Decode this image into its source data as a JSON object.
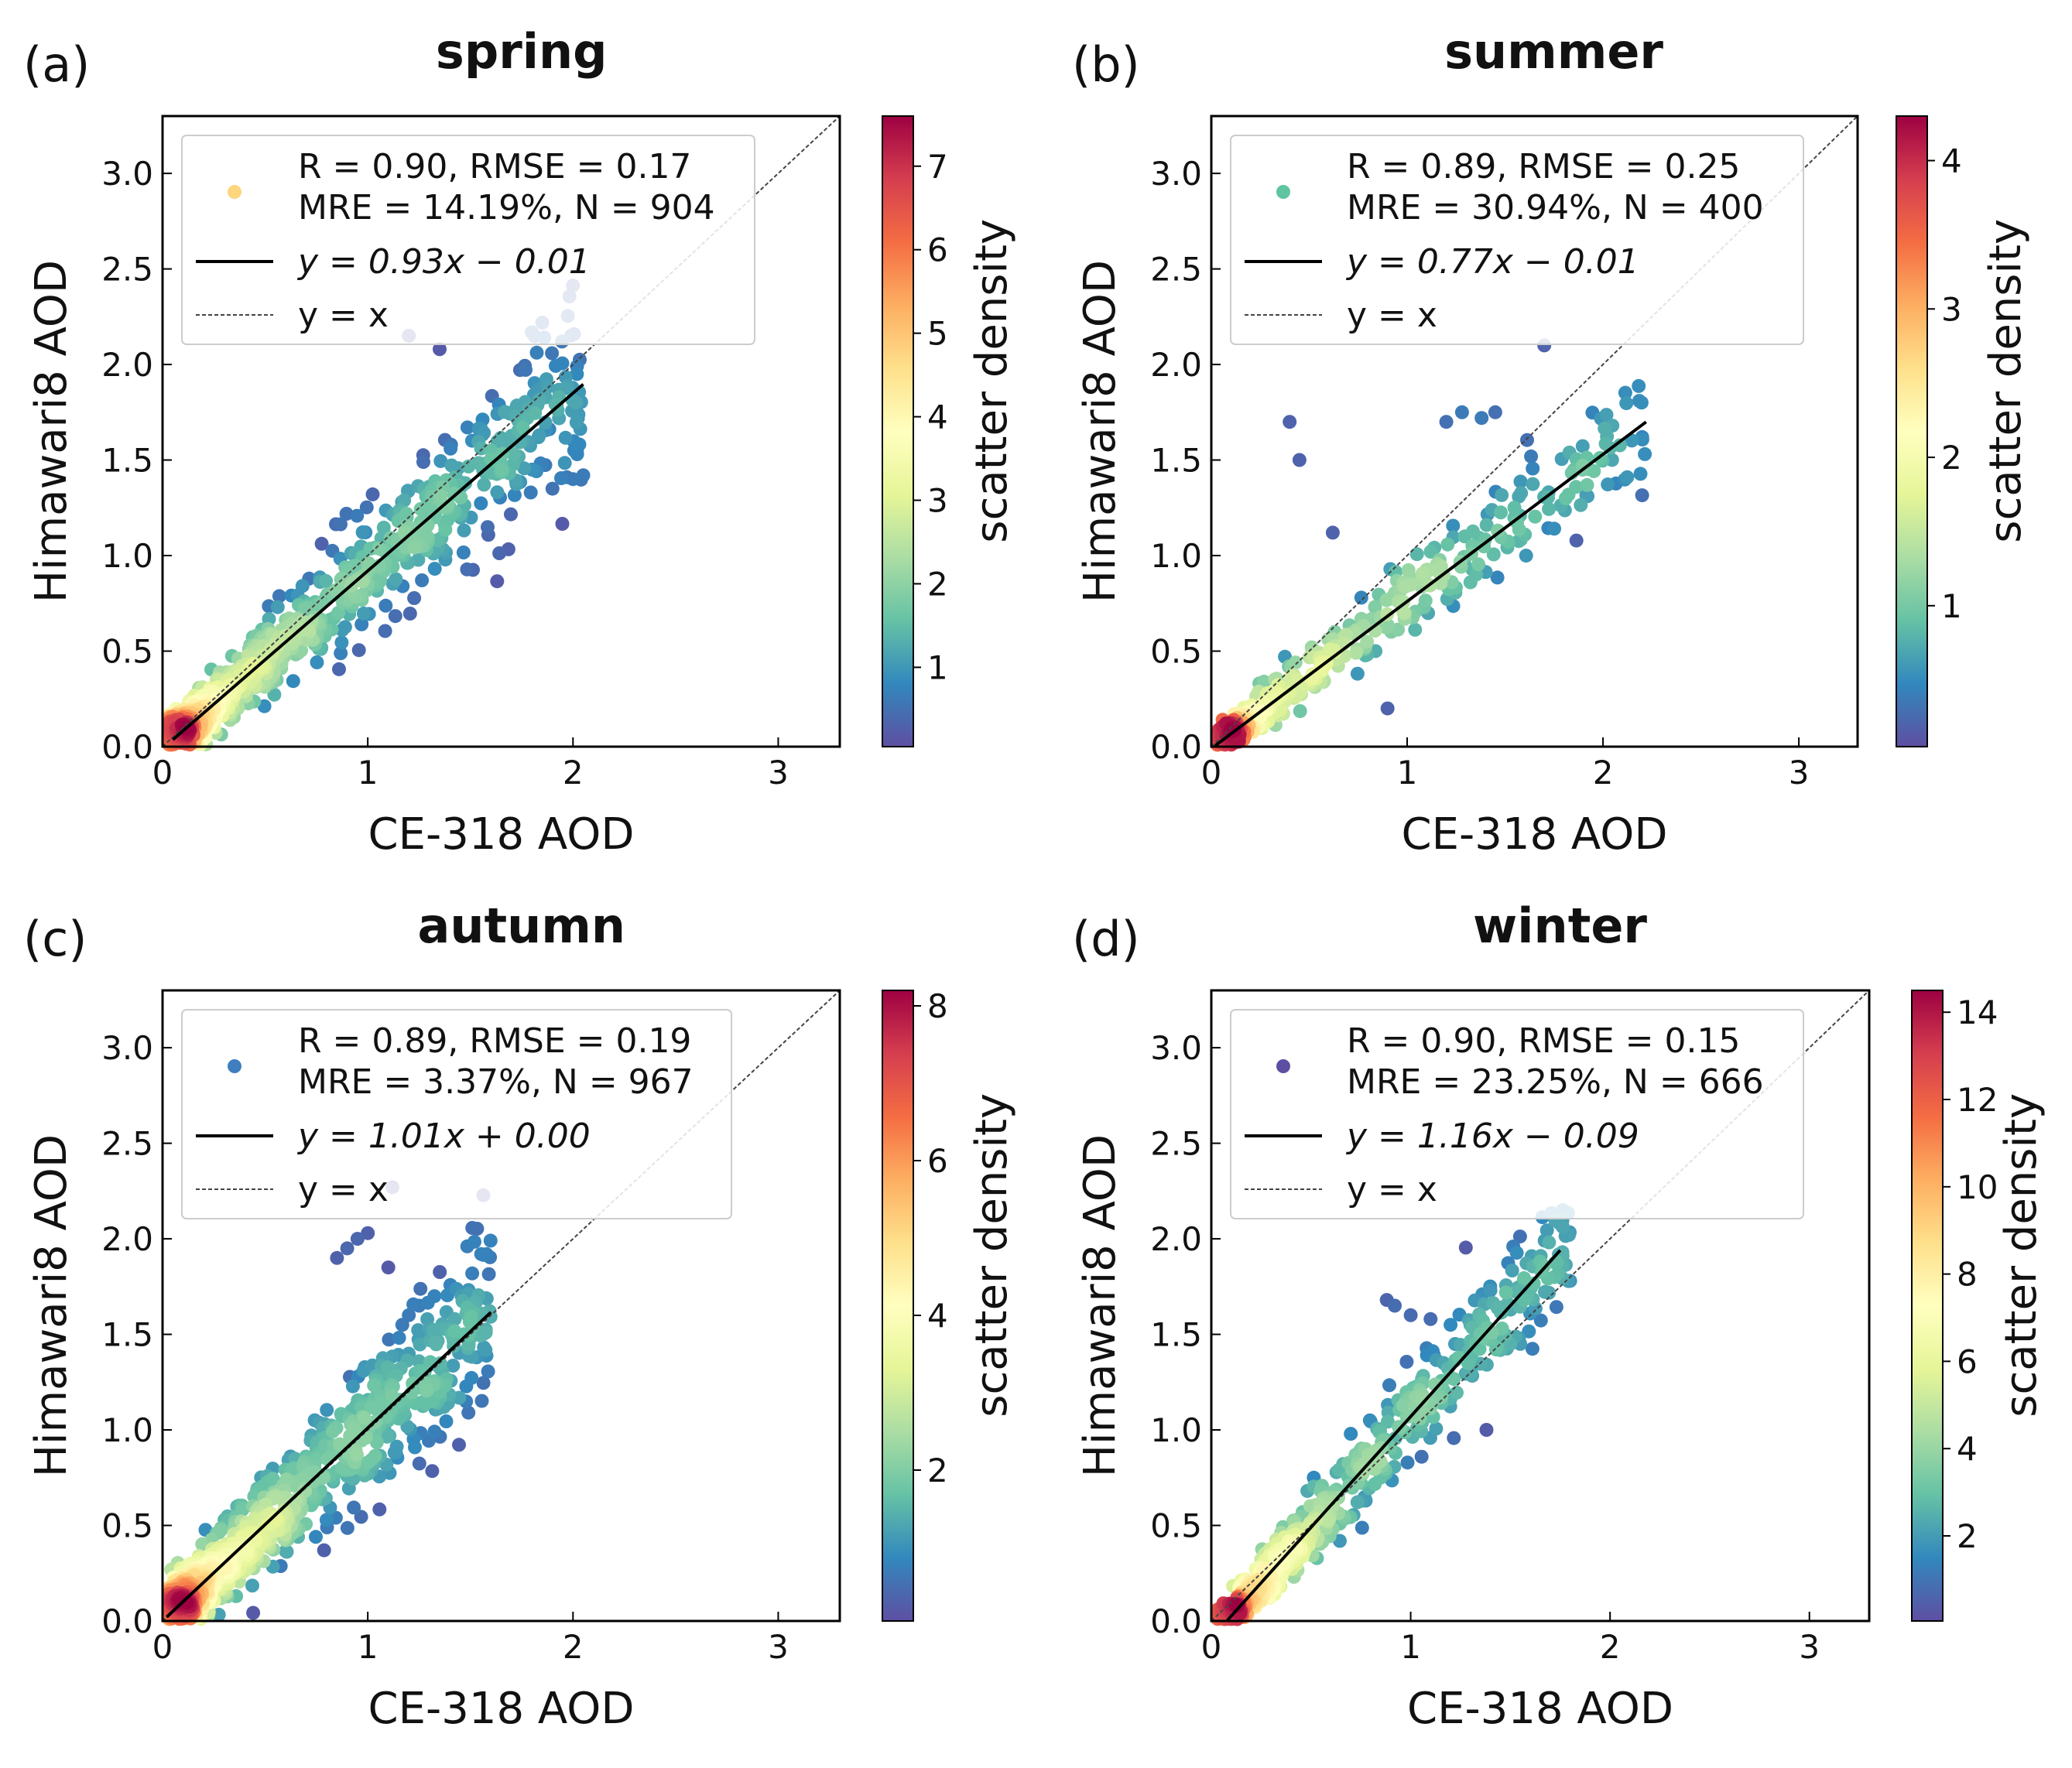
{
  "figure": {
    "panel_titles": [
      "spring",
      "summer",
      "autumn",
      "winter"
    ],
    "panel_labels": [
      "(a)",
      "(b)",
      "(c)",
      "(d)"
    ]
  },
  "chart_data": [
    {
      "type": "scatter",
      "title": "spring",
      "label": "(a)",
      "xlabel": "CE-318 AOD",
      "ylabel": "Himawari8 AOD",
      "xlim": [
        0,
        3.3
      ],
      "ylim": [
        0,
        3.3
      ],
      "xticks": [
        "0",
        "1",
        "2",
        "3"
      ],
      "yticks": [
        "0.0",
        "0.5",
        "1.0",
        "1.5",
        "2.0",
        "2.5",
        "3.0"
      ],
      "stats_line1": "R = 0.90, RMSE = 0.17",
      "stats_line2": "MRE = 14.19%, N = 904",
      "fit_label": "y = 0.93x − 0.01",
      "ref_label": "y = x",
      "fit": {
        "slope": 0.93,
        "intercept": -0.01,
        "x_range": [
          0.05,
          2.05
        ]
      },
      "legend_marker_color": "#fdd57f",
      "colorbar": {
        "label": "scatter density",
        "min": 0.05,
        "max": 7.6,
        "ticks": [
          "1",
          "2",
          "3",
          "4",
          "5",
          "6",
          "7"
        ],
        "tick_values": [
          1,
          2,
          3,
          4,
          5,
          6,
          7
        ]
      },
      "n": 904,
      "spread": 0.16,
      "x_max": 2.05,
      "outliers": [
        [
          1.2,
          2.15
        ],
        [
          1.35,
          2.08
        ],
        [
          1.9,
          1.35
        ],
        [
          2.0,
          1.4
        ],
        [
          2.05,
          1.42
        ],
        [
          1.8,
          1.45
        ],
        [
          2.02,
          1.53
        ],
        [
          1.6,
          1.55
        ]
      ]
    },
    {
      "type": "scatter",
      "title": "summer",
      "label": "(b)",
      "xlabel": "CE-318 AOD",
      "ylabel": "Himawari8 AOD",
      "xlim": [
        0,
        3.3
      ],
      "ylim": [
        0,
        3.3
      ],
      "xticks": [
        "0",
        "1",
        "2",
        "3"
      ],
      "yticks": [
        "0.0",
        "0.5",
        "1.0",
        "1.5",
        "2.0",
        "2.5",
        "3.0"
      ],
      "stats_line1": "R = 0.89, RMSE = 0.25",
      "stats_line2": "MRE = 30.94%, N = 400",
      "fit_label": "y = 0.77x − 0.01",
      "ref_label": "y = x",
      "fit": {
        "slope": 0.77,
        "intercept": -0.01,
        "x_range": [
          0.02,
          2.22
        ]
      },
      "legend_marker_color": "#5fc4a0",
      "colorbar": {
        "label": "scatter density",
        "min": 0.05,
        "max": 4.3,
        "ticks": [
          "1",
          "2",
          "3",
          "4"
        ],
        "tick_values": [
          1,
          2,
          3,
          4
        ]
      },
      "n": 400,
      "spread": 0.12,
      "x_max": 2.22,
      "outliers": [
        [
          0.4,
          1.7
        ],
        [
          0.45,
          1.5
        ],
        [
          1.2,
          1.7
        ],
        [
          1.28,
          1.75
        ],
        [
          1.38,
          1.72
        ],
        [
          1.45,
          1.75
        ],
        [
          1.7,
          2.1
        ],
        [
          0.62,
          1.12
        ],
        [
          0.9,
          0.2
        ],
        [
          2.2,
          1.62
        ]
      ]
    },
    {
      "type": "scatter",
      "title": "autumn",
      "label": "(c)",
      "xlabel": "CE-318 AOD",
      "ylabel": "Himawari8 AOD",
      "xlim": [
        0,
        3.3
      ],
      "ylim": [
        0,
        3.3
      ],
      "xticks": [
        "0",
        "1",
        "2",
        "3"
      ],
      "yticks": [
        "0.0",
        "0.5",
        "1.0",
        "1.5",
        "2.0",
        "2.5",
        "3.0"
      ],
      "stats_line1": "R = 0.89, RMSE = 0.19",
      "stats_line2": "MRE = 3.37%, N = 967",
      "fit_label": "y = 1.01x + 0.00",
      "ref_label": "y = x",
      "fit": {
        "slope": 1.01,
        "intercept": 0.0,
        "x_range": [
          0.02,
          1.6
        ]
      },
      "legend_marker_color": "#3f7fbf",
      "colorbar": {
        "label": "scatter density",
        "min": 0.05,
        "max": 8.2,
        "ticks": [
          "2",
          "4",
          "6",
          "8"
        ],
        "tick_values": [
          2,
          4,
          6,
          8
        ]
      },
      "n": 967,
      "spread": 0.2,
      "x_max": 1.6,
      "outliers": [
        [
          0.9,
          1.95
        ],
        [
          0.95,
          2.0
        ],
        [
          1.0,
          2.03
        ],
        [
          0.85,
          1.9
        ],
        [
          1.1,
          1.85
        ],
        [
          1.12,
          2.27
        ],
        [
          1.2,
          1.6
        ],
        [
          1.25,
          1.65
        ]
      ]
    },
    {
      "type": "scatter",
      "title": "winter",
      "label": "(d)",
      "xlabel": "CE-318 AOD",
      "ylabel": "Himawari8 AOD",
      "xlim": [
        0,
        3.3
      ],
      "ylim": [
        0,
        3.3
      ],
      "xticks": [
        "0",
        "1",
        "2",
        "3"
      ],
      "yticks": [
        "0.0",
        "0.5",
        "1.0",
        "1.5",
        "2.0",
        "2.5",
        "3.0"
      ],
      "stats_line1": "R = 0.90, RMSE = 0.15",
      "stats_line2": "MRE = 23.25%, N = 666",
      "fit_label": "y = 1.16x − 0.09",
      "ref_label": "y = x",
      "fit": {
        "slope": 1.16,
        "intercept": -0.09,
        "x_range": [
          0.08,
          1.75
        ]
      },
      "legend_marker_color": "#5e4fa2",
      "colorbar": {
        "label": "scatter density",
        "min": 0.05,
        "max": 14.5,
        "ticks": [
          "2",
          "4",
          "6",
          "8",
          "10",
          "12",
          "14"
        ],
        "tick_values": [
          2,
          4,
          6,
          8,
          10,
          12,
          14
        ]
      },
      "n": 666,
      "spread": 0.14,
      "x_max": 1.8,
      "outliers": [
        [
          0.88,
          1.68
        ],
        [
          0.92,
          1.65
        ],
        [
          1.0,
          1.6
        ],
        [
          1.1,
          1.58
        ],
        [
          1.2,
          1.55
        ],
        [
          1.3,
          1.55
        ],
        [
          1.4,
          1.73
        ],
        [
          1.5,
          1.45
        ],
        [
          1.55,
          1.45
        ],
        [
          1.72,
          1.8
        ],
        [
          1.8,
          1.78
        ],
        [
          1.38,
          1.0
        ]
      ]
    }
  ]
}
